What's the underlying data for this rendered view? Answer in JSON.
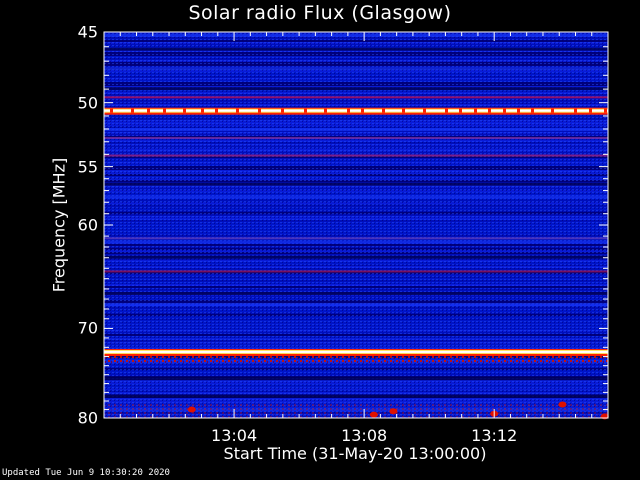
{
  "chart_data": {
    "type": "heatmap",
    "title": "Solar radio Flux (Glasgow)",
    "xlabel": "Start Time (31-May-20 13:00:00)",
    "ylabel": "Frequency [MHz]",
    "y_scale": "log",
    "ylim": [
      45,
      80
    ],
    "y_ticks": [
      "45",
      "50",
      "55",
      "60",
      "70",
      "80"
    ],
    "x_ticks": [
      "13:04",
      "13:08",
      "13:12"
    ],
    "bright_bands_mhz": [
      50.6,
      72.5
    ],
    "colors": {
      "background": "#000000",
      "low": "#0000a0",
      "mid": "#1a3cff",
      "high": "#ff2000",
      "max": "#ffffff"
    }
  },
  "footer": "Updated Tue Jun  9 10:30:20 2020"
}
